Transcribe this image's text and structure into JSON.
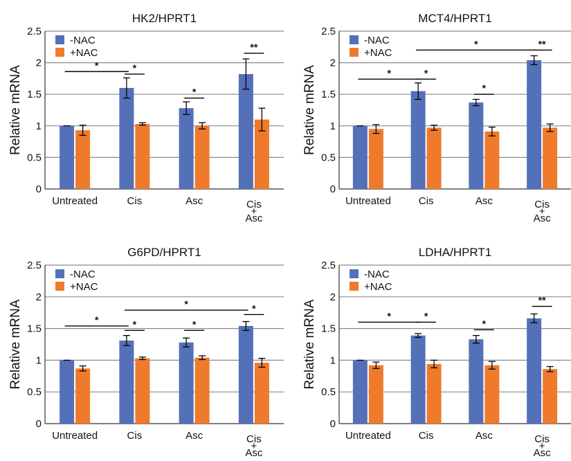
{
  "colors": {
    "neg": "#5470b8",
    "pos": "#ef7a2c",
    "grid": "#8a8a8a",
    "axis": "#333333"
  },
  "chart_data": [
    {
      "type": "bar",
      "title": "HK2/HPRT1",
      "ylabel": "Relative mRNA",
      "ylim": [
        0,
        2.5
      ],
      "yticks": [
        "0",
        "0.5",
        "1",
        "1.5",
        "2",
        "2.5"
      ],
      "grid": true,
      "legend_position": "top-left",
      "categories": [
        "Untreated",
        "Cis",
        "Asc",
        "Cis\n+\nAsc"
      ],
      "series": [
        {
          "name": "-NAC",
          "values": [
            1.0,
            1.6,
            1.28,
            1.82
          ],
          "errors": [
            0.0,
            0.16,
            0.1,
            0.24
          ]
        },
        {
          "name": "+NAC",
          "values": [
            0.93,
            1.03,
            1.0,
            1.1
          ],
          "errors": [
            0.08,
            0.02,
            0.05,
            0.18
          ]
        }
      ],
      "significance": [
        {
          "label": "*",
          "from": [
            0,
            0
          ],
          "to": [
            1,
            0
          ],
          "y": 1.86
        },
        {
          "label": "*",
          "from": [
            1,
            0
          ],
          "to": [
            1,
            1
          ],
          "y": 1.82
        },
        {
          "label": "*",
          "from": [
            2,
            0
          ],
          "to": [
            2,
            1
          ],
          "y": 1.44
        },
        {
          "label": "**",
          "from": [
            3,
            0
          ],
          "to": [
            3,
            1
          ],
          "y": 2.15
        }
      ]
    },
    {
      "type": "bar",
      "title": "MCT4/HPRT1",
      "ylabel": "Relative mRNA",
      "ylim": [
        0,
        2.5
      ],
      "yticks": [
        "0",
        "0.5",
        "1",
        "1.5",
        "2",
        "2.5"
      ],
      "grid": true,
      "legend_position": "top-left",
      "categories": [
        "Untreated",
        "Cis",
        "Asc",
        "Cis\n+\nAsc"
      ],
      "series": [
        {
          "name": "-NAC",
          "values": [
            1.0,
            1.55,
            1.37,
            2.04
          ],
          "errors": [
            0.0,
            0.13,
            0.05,
            0.07
          ]
        },
        {
          "name": "+NAC",
          "values": [
            0.95,
            0.97,
            0.91,
            0.97
          ],
          "errors": [
            0.07,
            0.04,
            0.07,
            0.06
          ]
        }
      ],
      "significance": [
        {
          "label": "*",
          "from": [
            1,
            0
          ],
          "to": [
            3,
            0
          ],
          "y": 2.2
        },
        {
          "label": "**",
          "from": [
            3,
            0
          ],
          "to": [
            3,
            1
          ],
          "y": 2.2
        },
        {
          "label": "*",
          "from": [
            0,
            0
          ],
          "to": [
            1,
            0
          ],
          "y": 1.74
        },
        {
          "label": "*",
          "from": [
            1,
            0
          ],
          "to": [
            1,
            1
          ],
          "y": 1.74
        },
        {
          "label": "*",
          "from": [
            2,
            0
          ],
          "to": [
            2,
            1
          ],
          "y": 1.5
        }
      ]
    },
    {
      "type": "bar",
      "title": "G6PD/HPRT1",
      "ylabel": "Relative mRNA",
      "ylim": [
        0,
        2.5
      ],
      "yticks": [
        "0",
        "0.5",
        "1",
        "1.5",
        "2",
        "2.5"
      ],
      "grid": true,
      "legend_position": "top-left",
      "categories": [
        "Untreated",
        "Cis",
        "Asc",
        "Cis\n+\nAsc"
      ],
      "series": [
        {
          "name": "-NAC",
          "values": [
            1.0,
            1.31,
            1.28,
            1.54
          ],
          "errors": [
            0.0,
            0.08,
            0.07,
            0.07
          ]
        },
        {
          "name": "+NAC",
          "values": [
            0.87,
            1.03,
            1.04,
            0.96
          ],
          "errors": [
            0.04,
            0.02,
            0.03,
            0.07
          ]
        }
      ],
      "significance": [
        {
          "label": "*",
          "from": [
            1,
            0
          ],
          "to": [
            3,
            0
          ],
          "y": 1.79
        },
        {
          "label": "*",
          "from": [
            3,
            0
          ],
          "to": [
            3,
            1
          ],
          "y": 1.72
        },
        {
          "label": "*",
          "from": [
            0,
            0
          ],
          "to": [
            1,
            0
          ],
          "y": 1.54
        },
        {
          "label": "*",
          "from": [
            1,
            0
          ],
          "to": [
            1,
            1
          ],
          "y": 1.47
        },
        {
          "label": "*",
          "from": [
            2,
            0
          ],
          "to": [
            2,
            1
          ],
          "y": 1.47
        }
      ]
    },
    {
      "type": "bar",
      "title": "LDHA/HPRT1",
      "ylabel": "Relative mRNA",
      "ylim": [
        0,
        2.5
      ],
      "yticks": [
        "0",
        "0.5",
        "1",
        "1.5",
        "2",
        "2.5"
      ],
      "grid": true,
      "legend_position": "top-left",
      "categories": [
        "Untreated",
        "Cis",
        "Asc",
        "Cis\n+\nAsc"
      ],
      "series": [
        {
          "name": "-NAC",
          "values": [
            1.0,
            1.39,
            1.33,
            1.66
          ],
          "errors": [
            0.0,
            0.03,
            0.06,
            0.07
          ]
        },
        {
          "name": "+NAC",
          "values": [
            0.92,
            0.94,
            0.92,
            0.86
          ],
          "errors": [
            0.05,
            0.06,
            0.06,
            0.04
          ]
        }
      ],
      "significance": [
        {
          "label": "*",
          "from": [
            0,
            0
          ],
          "to": [
            1,
            0
          ],
          "y": 1.6
        },
        {
          "label": "*",
          "from": [
            1,
            0
          ],
          "to": [
            1,
            1
          ],
          "y": 1.6
        },
        {
          "label": "*",
          "from": [
            2,
            0
          ],
          "to": [
            2,
            1
          ],
          "y": 1.48
        },
        {
          "label": "**",
          "from": [
            3,
            0
          ],
          "to": [
            3,
            1
          ],
          "y": 1.85
        }
      ]
    }
  ]
}
